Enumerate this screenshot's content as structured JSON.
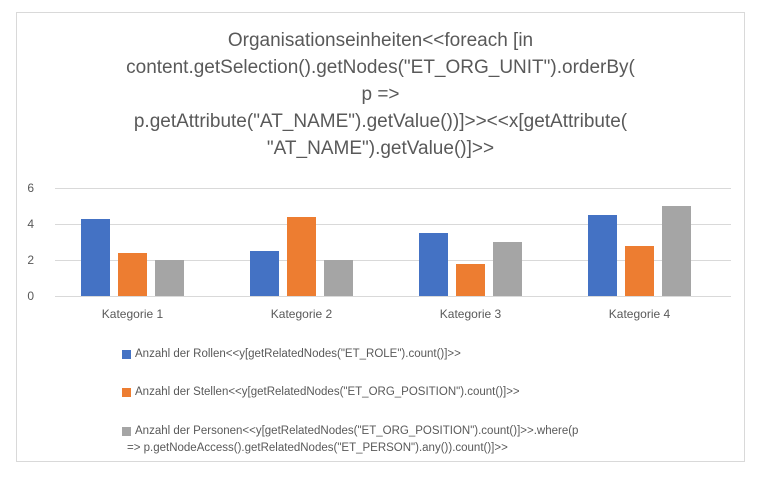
{
  "chart": {
    "background": "#ffffff",
    "border_color": "#d9d9d9",
    "text_color": "#595959",
    "gridline_color": "#d9d9d9"
  },
  "chart_data": {
    "type": "bar",
    "title": "Organisationseinheiten<<foreach [in content.getSelection().getNodes(\"ET_ORG_UNIT\").orderBy( p => p.getAttribute(\"AT_NAME\").getValue())]>><<x[getAttribute( \"AT_NAME\").getValue()]>>",
    "title_lines": [
      "Organisationseinheiten<<foreach [in",
      "content.getSelection().getNodes(\"ET_ORG_UNIT\").orderBy(",
      "p =>",
      "p.getAttribute(\"AT_NAME\").getValue())]>><<x[getAttribute(",
      "\"AT_NAME\").getValue()]>>"
    ],
    "categories": [
      "Kategorie 1",
      "Kategorie 2",
      "Kategorie 3",
      "Kategorie 4"
    ],
    "series": [
      {
        "name": "Anzahl der Rollen<<y[getRelatedNodes(\"ET_ROLE\").count()]>>",
        "legend_lines": [
          "Anzahl der Rollen<<y[getRelatedNodes(\"ET_ROLE\").count()]>>"
        ],
        "color": "#4472c4",
        "values": [
          4.3,
          2.5,
          3.5,
          4.5
        ]
      },
      {
        "name": "Anzahl der Stellen<<y[getRelatedNodes(\"ET_ORG_POSITION\").count()]>>",
        "legend_lines": [
          "Anzahl der Stellen<<y[getRelatedNodes(\"ET_ORG_POSITION\").count()]>>"
        ],
        "color": "#ed7d31",
        "values": [
          2.4,
          4.4,
          1.8,
          2.8
        ]
      },
      {
        "name": "Anzahl der Personen<<y[getRelatedNodes(\"ET_ORG_POSITION\").count()]>>.where(p => p.getNodeAccess().getRelatedNodes(\"ET_PERSON\").any()).count()]>>",
        "legend_lines": [
          "Anzahl der Personen<<y[getRelatedNodes(\"ET_ORG_POSITION\").count()]>>.where(p",
          "=> p.getNodeAccess().getRelatedNodes(\"ET_PERSON\").any()).count()]>>"
        ],
        "color": "#a5a5a5",
        "values": [
          2,
          2,
          3,
          5
        ]
      }
    ],
    "y_ticks": [
      0,
      2,
      4,
      6
    ],
    "ylim": [
      0,
      6
    ],
    "grid": true,
    "legend_position": "bottom-left"
  }
}
